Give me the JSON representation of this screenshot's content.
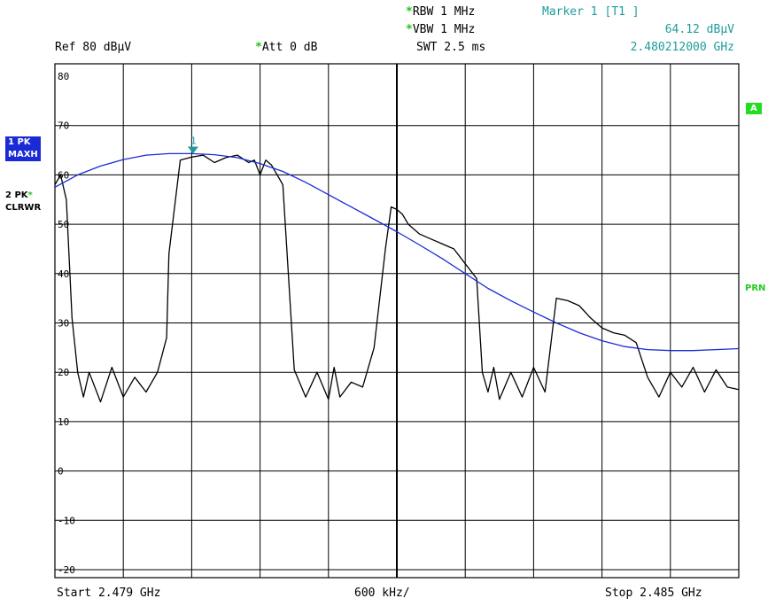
{
  "header": {
    "rbw": "RBW 1 MHz",
    "vbw": "VBW 1 MHz",
    "swt": "SWT 2.5 ms",
    "ref": "Ref  80 dBµV",
    "att": "Att  0 dB",
    "marker_title": "Marker 1 [T1 ]",
    "marker_level": "64.12 dBµV",
    "marker_freq": "2.480212000 GHz",
    "star": "*"
  },
  "side": {
    "trace1_a": "1 PK",
    "trace1_b": "MAXH",
    "trace2_a": "2 PK",
    "trace2_b": "CLRWR",
    "a_label": "A",
    "prn_label": "PRN"
  },
  "footer": {
    "start": "Start 2.479 GHz",
    "span": "600 kHz/",
    "stop": "Stop 2.485 GHz"
  },
  "colors": {
    "trace1": "#1a2bd6",
    "trace2": "#000000",
    "marker": "#1d9c9c",
    "grid": "#000000"
  },
  "chart_data": {
    "type": "line",
    "xlabel": "",
    "ylabel": "",
    "xlim": [
      2.479,
      2.485
    ],
    "ylim": [
      -20,
      80
    ],
    "y_ticks": [
      "80",
      "70",
      "60",
      "50",
      "40",
      "30",
      "20",
      "10",
      "0",
      "-10",
      "-20"
    ],
    "x_divisions": 10,
    "grid": true,
    "marker": {
      "label": "1",
      "x": 2.480212,
      "y": 64.12
    },
    "series": [
      {
        "name": "1 PK MAXH",
        "x": [
          2.479,
          2.4792,
          2.4794,
          2.4796,
          2.4798,
          2.48,
          2.4802,
          2.4804,
          2.4806,
          2.4808,
          2.481,
          2.4812,
          2.4814,
          2.4816,
          2.4818,
          2.482,
          2.4822,
          2.4824,
          2.4826,
          2.4828,
          2.483,
          2.4832,
          2.4834,
          2.4836,
          2.4838,
          2.484,
          2.4842,
          2.4844,
          2.4846,
          2.4848,
          2.485
        ],
        "values": [
          57.5,
          60.0,
          61.8,
          63.1,
          64.0,
          64.3,
          64.3,
          64.1,
          63.5,
          62.3,
          60.7,
          58.5,
          56.0,
          53.5,
          51.0,
          48.5,
          45.8,
          43.0,
          40.0,
          37.0,
          34.5,
          32.2,
          30.0,
          28.0,
          26.4,
          25.2,
          24.6,
          24.4,
          24.4,
          24.6,
          24.8
        ]
      },
      {
        "name": "2 PK CLRWR",
        "x": [
          2.479,
          2.47905,
          2.4791,
          2.47915,
          2.4792,
          2.47925,
          2.4793,
          2.4794,
          2.4795,
          2.4796,
          2.4797,
          2.4798,
          2.4799,
          2.47998,
          2.48,
          2.4801,
          2.4802,
          2.4803,
          2.4804,
          2.4805,
          2.4806,
          2.4807,
          2.48075,
          2.4808,
          2.48085,
          2.4809,
          2.481,
          2.4811,
          2.4812,
          2.4813,
          2.4814,
          2.48145,
          2.4815,
          2.4816,
          2.4817,
          2.4818,
          2.4819,
          2.48195,
          2.482,
          2.48205,
          2.4821,
          2.4822,
          2.4823,
          2.4824,
          2.4825,
          2.4826,
          2.4827,
          2.48275,
          2.4828,
          2.48285,
          2.4829,
          2.483,
          2.4831,
          2.4832,
          2.4833,
          2.4834,
          2.4835,
          2.4836,
          2.4837,
          2.4838,
          2.4839,
          2.484,
          2.4841,
          2.4842,
          2.4843,
          2.4844,
          2.4845,
          2.4846,
          2.4847,
          2.4848,
          2.4849,
          2.485
        ],
        "values": [
          58.0,
          60.0,
          55.0,
          31.0,
          20.0,
          15.0,
          20.0,
          14.0,
          21.0,
          15.0,
          19.0,
          16.0,
          20.0,
          27.0,
          44.0,
          63.0,
          63.6,
          64.0,
          62.5,
          63.5,
          64.0,
          62.5,
          63.0,
          60.0,
          63.0,
          62.0,
          58.0,
          20.5,
          15.0,
          20.0,
          14.5,
          21.0,
          15.0,
          18.0,
          17.0,
          25.0,
          45.0,
          53.5,
          53.0,
          52.0,
          50.0,
          48.0,
          47.0,
          46.0,
          45.0,
          42.0,
          39.0,
          20.0,
          16.0,
          21.0,
          14.5,
          20.0,
          15.0,
          21.0,
          16.0,
          35.0,
          34.5,
          33.5,
          31.0,
          29.0,
          28.0,
          27.5,
          26.0,
          19.0,
          15.0,
          20.0,
          17.0,
          21.0,
          16.0,
          20.5,
          17.0,
          16.5
        ]
      }
    ]
  }
}
